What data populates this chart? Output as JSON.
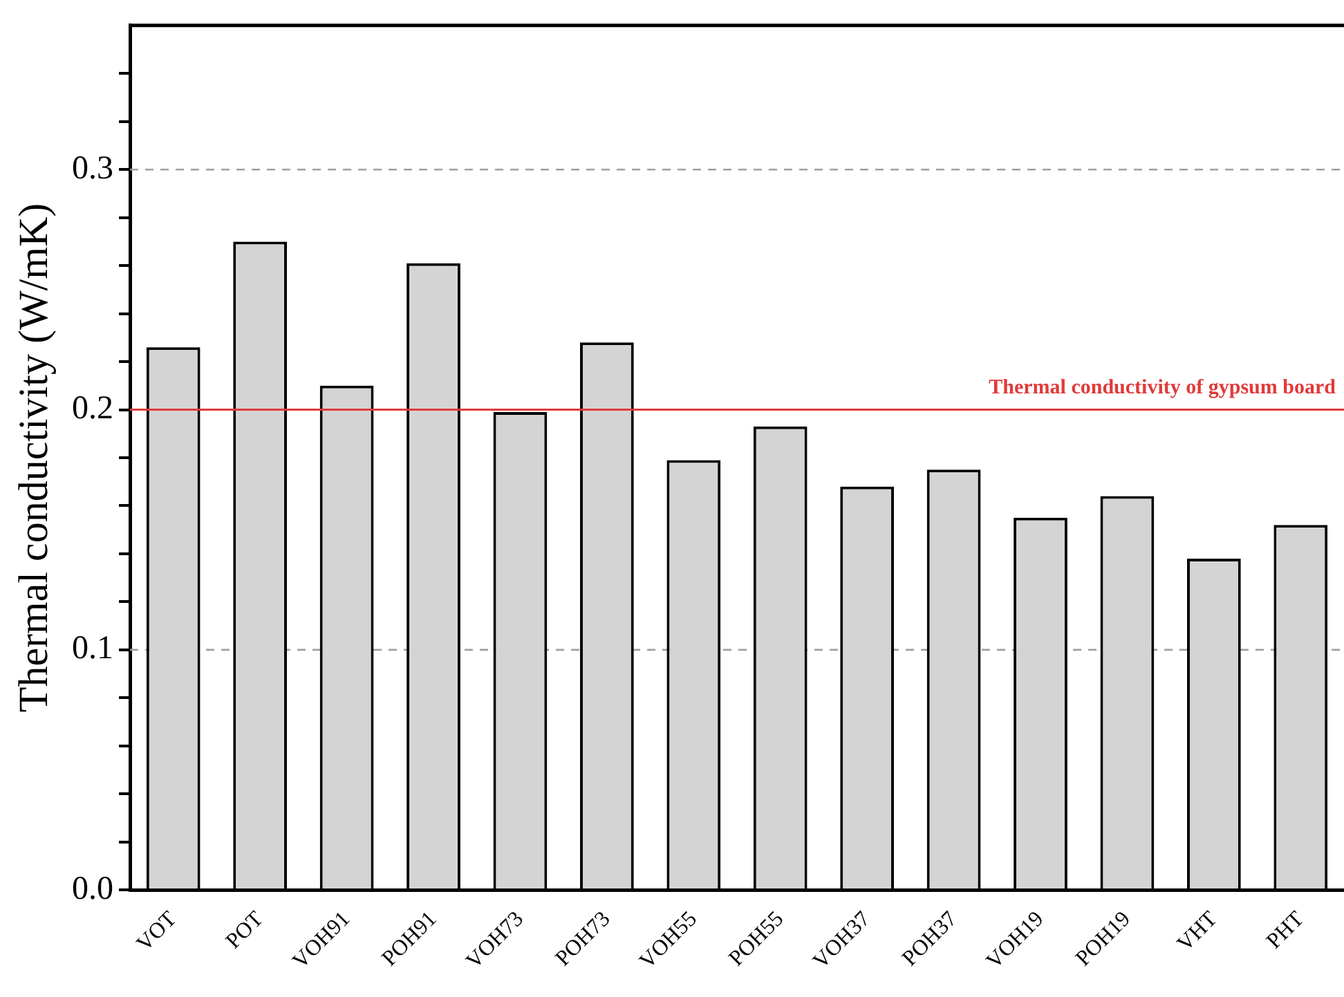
{
  "chart_data": {
    "type": "bar",
    "ylabel": "Thermal conductivity (W/mK)",
    "categories": [
      "VOT",
      "POT",
      "VOH91",
      "POH91",
      "VOH73",
      "POH73",
      "VOH55",
      "POH55",
      "VOH37",
      "POH37",
      "VOH19",
      "POH19",
      "VHT",
      "PHT"
    ],
    "values": [
      0.226,
      0.27,
      0.21,
      0.261,
      0.199,
      0.228,
      0.179,
      0.193,
      0.168,
      0.175,
      0.155,
      0.164,
      0.138,
      0.152
    ],
    "color": "#d4d4d4",
    "ylim": [
      0,
      0.36
    ],
    "yticks": [
      {
        "value": 0,
        "label": "0.0"
      },
      {
        "value": 0.02,
        "label": null
      },
      {
        "value": 0.04,
        "label": null
      },
      {
        "value": 0.06,
        "label": null
      },
      {
        "value": 0.08,
        "label": null
      },
      {
        "value": 0.1,
        "label": "0.1"
      },
      {
        "value": 0.12,
        "label": null
      },
      {
        "value": 0.14,
        "label": null
      },
      {
        "value": 0.16,
        "label": null
      },
      {
        "value": 0.18,
        "label": null
      },
      {
        "value": 0.2,
        "label": "0.2"
      },
      {
        "value": 0.22,
        "label": null
      },
      {
        "value": 0.24,
        "label": null
      },
      {
        "value": 0.26,
        "label": null
      },
      {
        "value": 0.28,
        "label": null
      },
      {
        "value": 0.3,
        "label": "0.3"
      },
      {
        "value": 0.32,
        "label": null
      },
      {
        "value": 0.34,
        "label": null
      }
    ],
    "grid": "y",
    "ref_lines": [
      {
        "axis": "y",
        "value": 0.2,
        "label": "Thermal conductivity of gypsum board",
        "color": "#e03a3a"
      }
    ]
  }
}
